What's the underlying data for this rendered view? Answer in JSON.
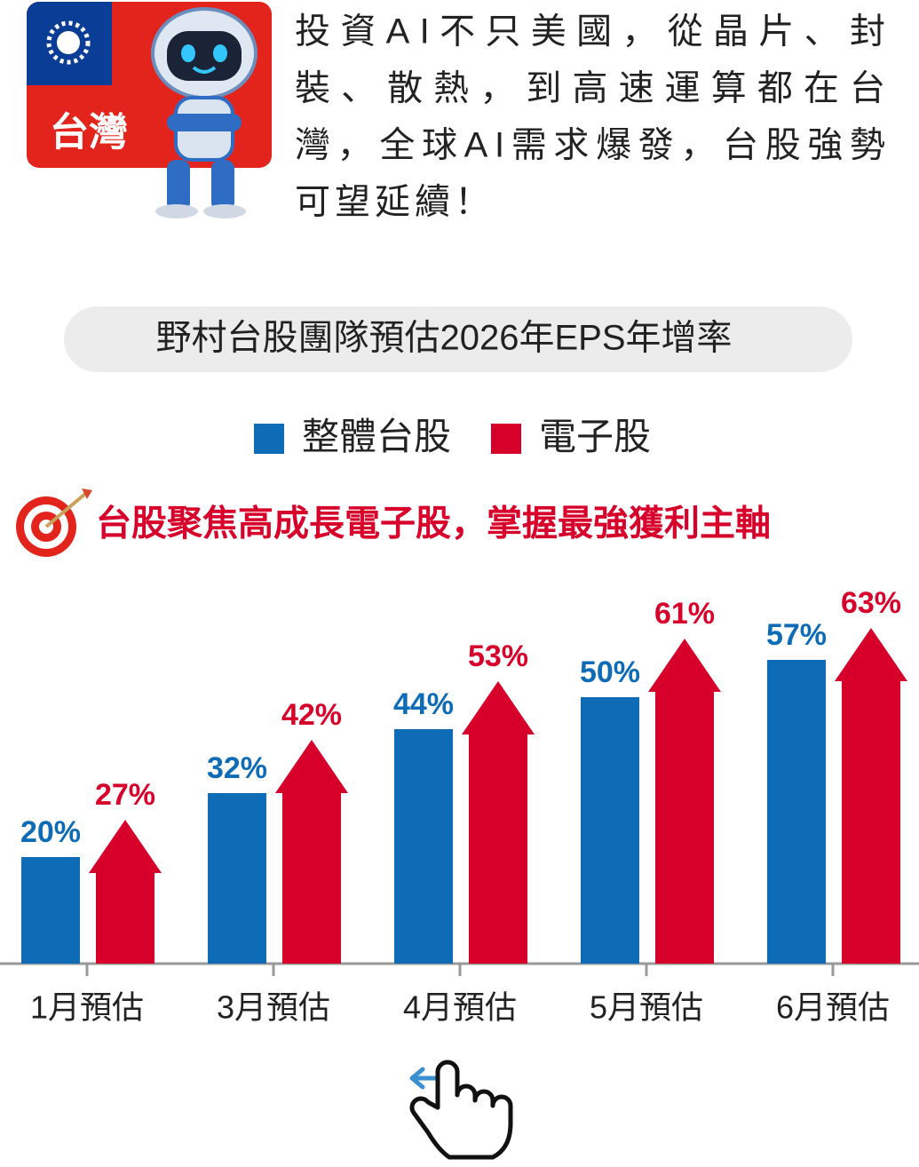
{
  "header": {
    "flag_label": "台灣",
    "text_lines": [
      "投資AI不只美國，從晶片、封",
      "裝、散熱，到高速運算都在台",
      "灣，全球AI需求爆發，台股強勢",
      "可望延續！"
    ]
  },
  "chart_data": {
    "type": "bar",
    "title": "野村台股團隊預估2026年EPS年增率",
    "annotation": "台股聚焦高成長電子股，掌握最強獲利主軸",
    "categories": [
      "1月預估",
      "3月預估",
      "4月預估",
      "5月預估",
      "6月預估"
    ],
    "series": [
      {
        "name": "整體台股",
        "color": "#0e6bb5",
        "shape": "bar",
        "values": [
          20,
          32,
          44,
          50,
          57
        ],
        "value_labels": [
          "20%",
          "32%",
          "44%",
          "50%",
          "57%"
        ]
      },
      {
        "name": "電子股",
        "color": "#d7002a",
        "shape": "arrow",
        "values": [
          27,
          42,
          53,
          61,
          63
        ],
        "value_labels": [
          "27%",
          "42%",
          "53%",
          "61%",
          "63%"
        ]
      }
    ],
    "ylim": [
      0,
      70
    ]
  }
}
